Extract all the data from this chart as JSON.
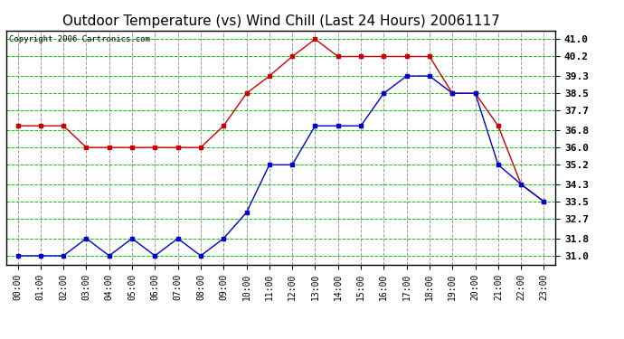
{
  "title": "Outdoor Temperature (vs) Wind Chill (Last 24 Hours) 20061117",
  "copyright_text": "Copyright 2006 Cartronics.com",
  "hours": [
    "00:00",
    "01:00",
    "02:00",
    "03:00",
    "04:00",
    "05:00",
    "06:00",
    "07:00",
    "08:00",
    "09:00",
    "10:00",
    "11:00",
    "12:00",
    "13:00",
    "14:00",
    "15:00",
    "16:00",
    "17:00",
    "18:00",
    "19:00",
    "20:00",
    "21:00",
    "22:00",
    "23:00"
  ],
  "red_line": [
    37.0,
    37.0,
    37.0,
    36.0,
    36.0,
    36.0,
    36.0,
    36.0,
    36.0,
    37.0,
    38.5,
    39.3,
    40.2,
    41.0,
    40.2,
    40.2,
    40.2,
    40.2,
    40.2,
    38.5,
    38.5,
    37.0,
    34.3,
    33.5
  ],
  "blue_line": [
    31.0,
    31.0,
    31.0,
    31.8,
    31.0,
    31.8,
    31.0,
    31.8,
    31.0,
    31.8,
    33.0,
    35.2,
    35.2,
    37.0,
    37.0,
    37.0,
    38.5,
    39.3,
    39.3,
    38.5,
    38.5,
    35.2,
    34.3,
    33.5
  ],
  "yticks": [
    31.0,
    31.8,
    32.7,
    33.5,
    34.3,
    35.2,
    36.0,
    36.8,
    37.7,
    38.5,
    39.3,
    40.2,
    41.0
  ],
  "ymin": 30.6,
  "ymax": 41.4,
  "red_color": "#cc0000",
  "blue_color": "#0000cc",
  "grid_color_h": "#00cc00",
  "grid_color_v": "#999999",
  "bg_color": "#ffffff",
  "title_fontsize": 11,
  "copyright_fontsize": 6.5,
  "tick_fontsize": 7,
  "ytick_fontsize": 8
}
